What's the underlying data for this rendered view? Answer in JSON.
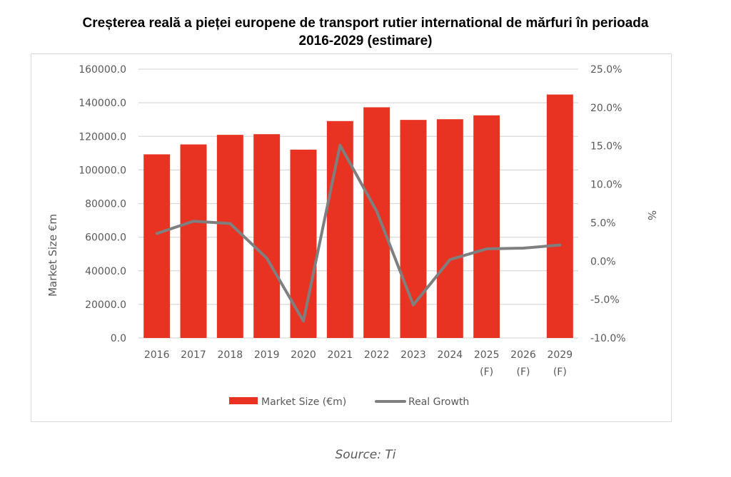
{
  "chart_data": {
    "type": "bar",
    "title": "Creșterea reală a pieței europene de transport rutier international de mărfuri în perioada 2016-2029 (estimare)",
    "title_lines": [
      "Creșterea reală a pieței europene de transport rutier international de mărfuri în perioada",
      "2016-2029 (estimare)"
    ],
    "categories": [
      [
        "2016"
      ],
      [
        "2017"
      ],
      [
        "2018"
      ],
      [
        "2019"
      ],
      [
        "2020"
      ],
      [
        "2021"
      ],
      [
        "2022"
      ],
      [
        "2023"
      ],
      [
        "2024"
      ],
      [
        "2025",
        "(F)"
      ],
      [
        "2026",
        "(F)"
      ],
      [
        "2029",
        "(F)"
      ]
    ],
    "series": [
      {
        "name": "Market Size (€m)",
        "type": "bar",
        "axis": "left",
        "color": "#e83323",
        "values": [
          109300,
          115200,
          120900,
          121300,
          112100,
          129100,
          137300,
          129800,
          130200,
          132500,
          null,
          144900
        ]
      },
      {
        "name": "Real Growth",
        "type": "line",
        "axis": "right",
        "color": "#7f7f7f",
        "values": [
          3.6,
          5.2,
          4.9,
          0.4,
          -7.8,
          15.1,
          6.5,
          -5.7,
          0.2,
          1.6,
          1.7,
          2.1
        ]
      }
    ],
    "ylabel": "Market Size €m",
    "ylim": [
      0,
      160000
    ],
    "yticks": [
      "0.0",
      "20000.0",
      "40000.0",
      "60000.0",
      "80000.0",
      "100000.0",
      "120000.0",
      "140000.0",
      "160000.0"
    ],
    "y2label": "%",
    "y2lim": [
      -10,
      25
    ],
    "y2ticks": [
      "-10.0%",
      "-5.0%",
      "0.0%",
      "5.0%",
      "10.0%",
      "15.0%",
      "20.0%",
      "25.0%"
    ],
    "xlabel": "",
    "grid": true,
    "legend": "bottom"
  },
  "source": "Source: Ti"
}
